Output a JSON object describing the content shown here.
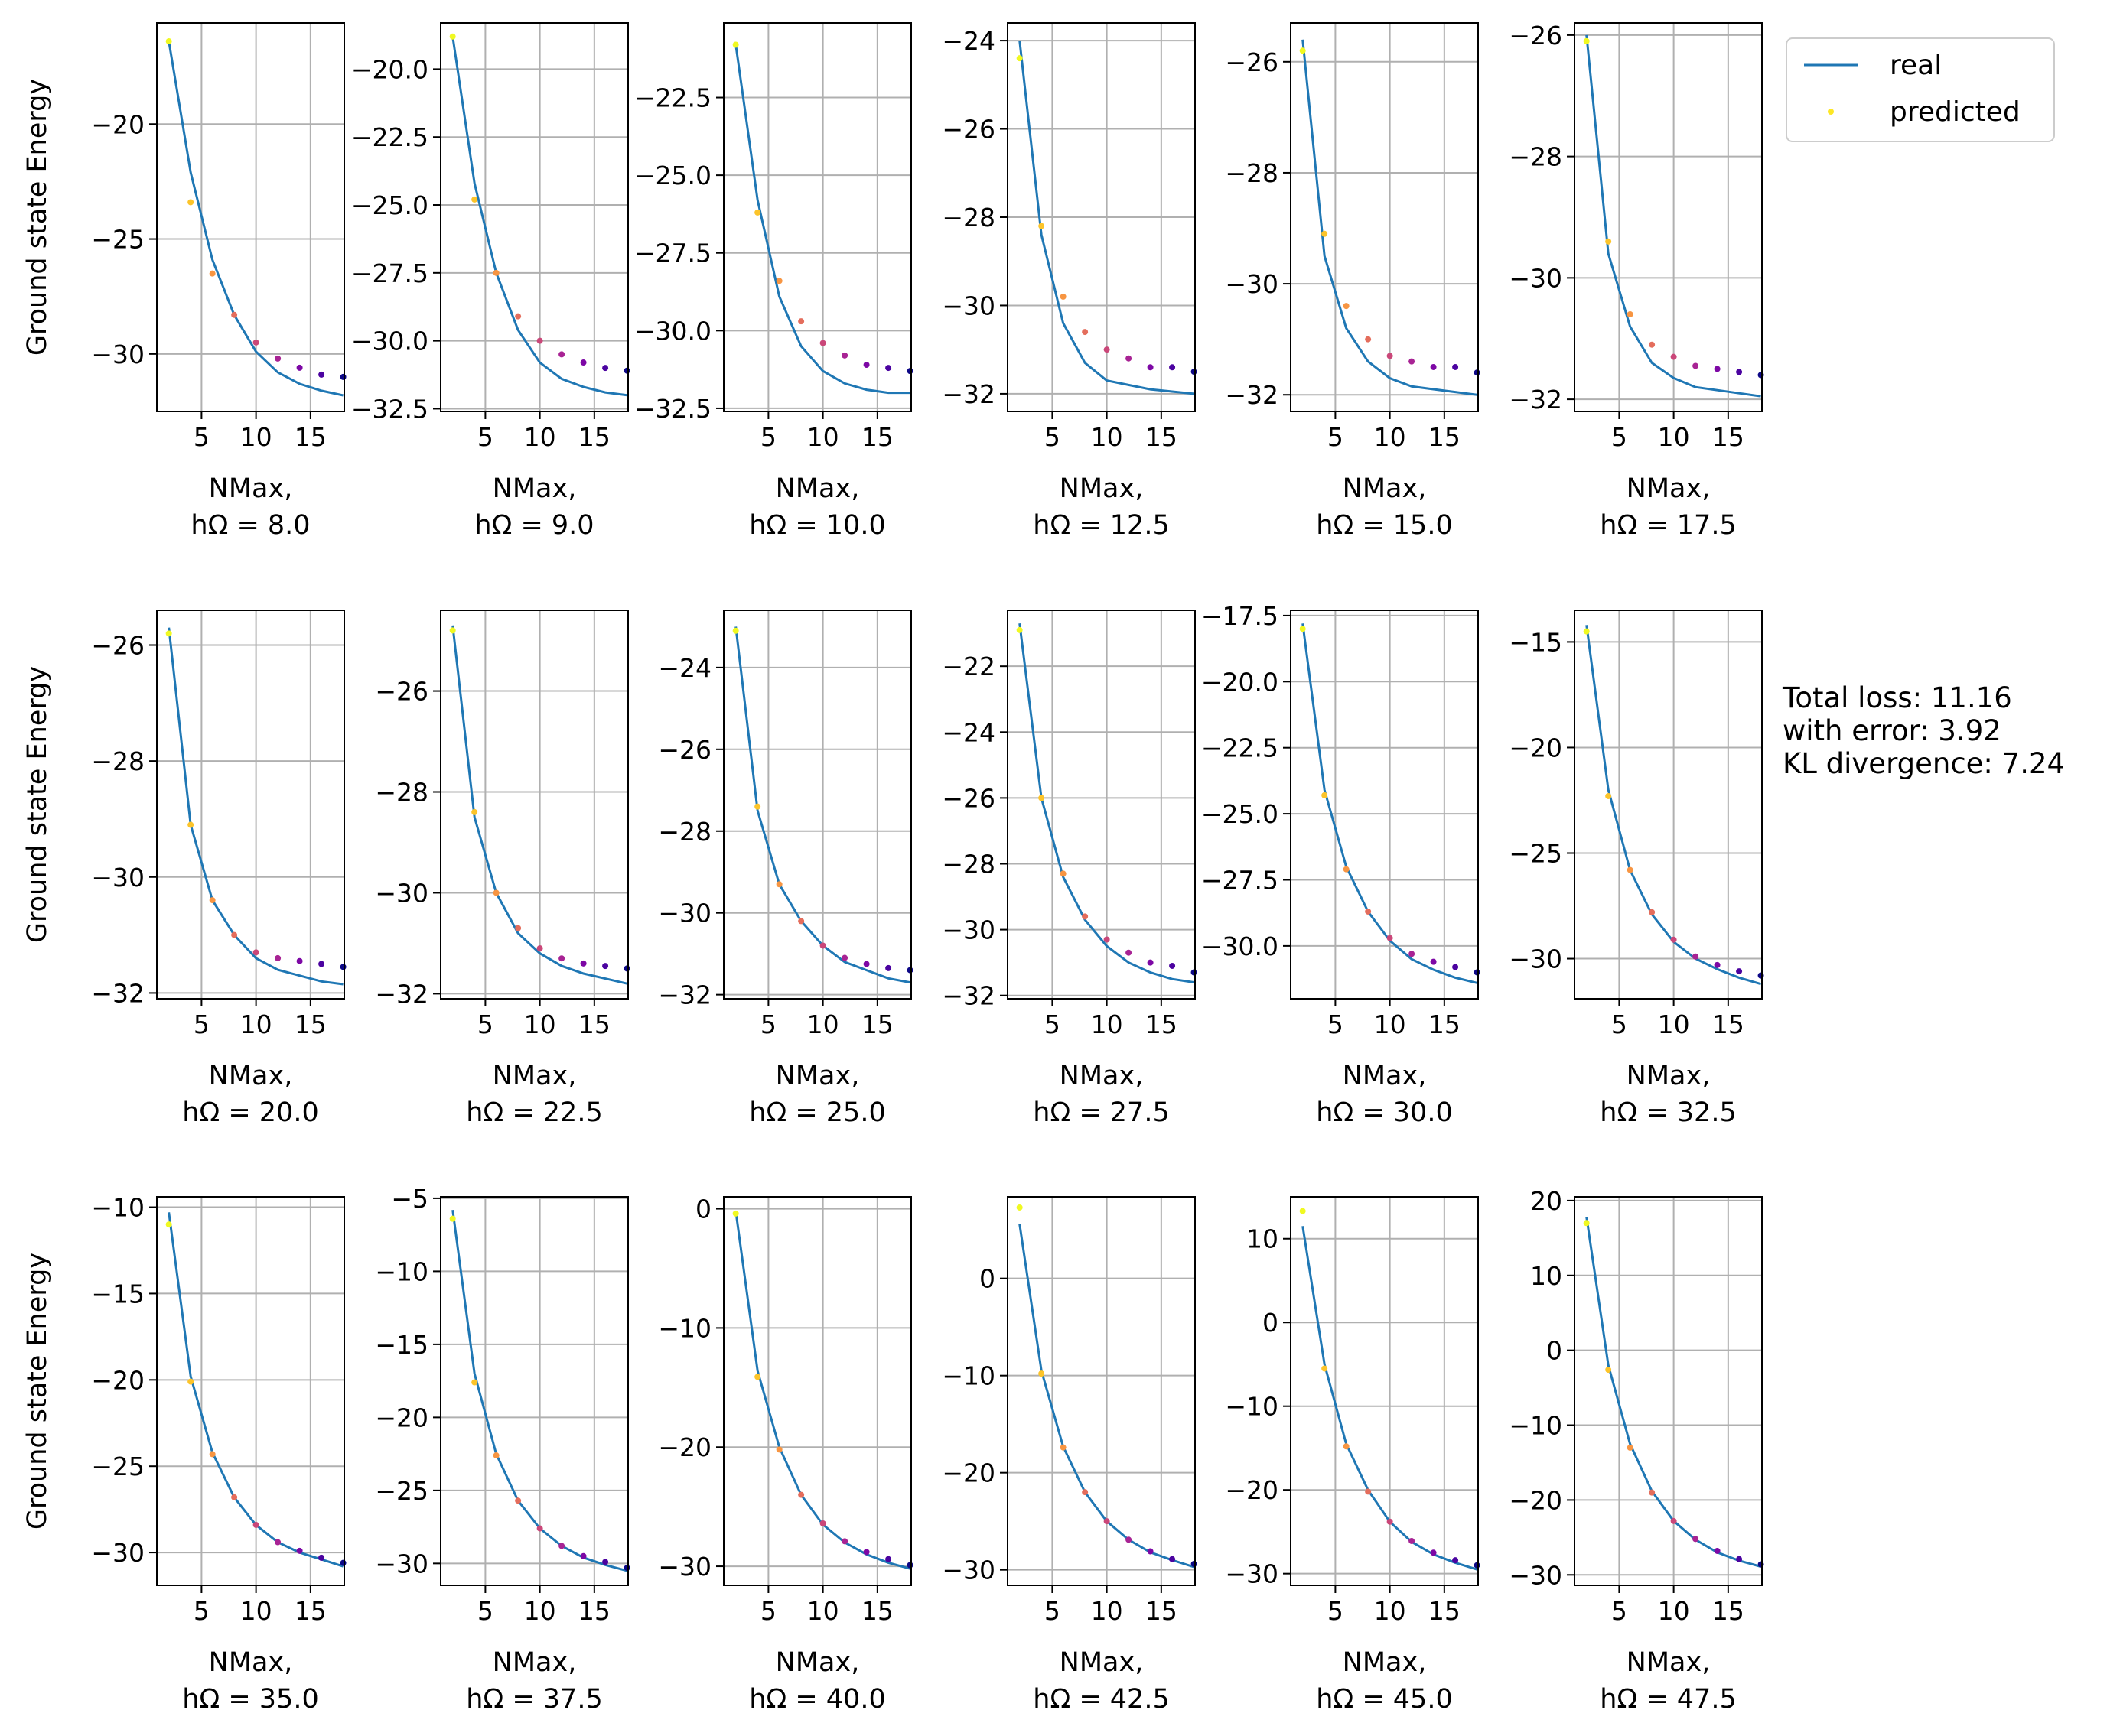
{
  "figure": {
    "ylabel": "Ground state Energy",
    "legend": {
      "real_label": "real",
      "predicted_label": "predicted",
      "placement": "top-right outside"
    },
    "loss_lines": [
      "Total loss: 11.16",
      "with error: 3.92",
      "KL divergence: 7.24"
    ],
    "colors": {
      "real_line": "#1f77b4",
      "grid": "#b0b0b0",
      "predicted_colormap": "plasma",
      "legend_marker": "#fde725"
    }
  },
  "chart_data": [
    {
      "type": "line",
      "panel": 0,
      "xlabel": [
        "NMax,",
        "hΩ = 8.0"
      ],
      "xlim": [
        0.9,
        18.1
      ],
      "ylim": [
        -32.5,
        -15.6
      ],
      "xticks": [
        5,
        10,
        15
      ],
      "yticks": [
        -20,
        -25,
        -30
      ],
      "yticklabels": [
        "−20",
        "−25",
        "−30"
      ],
      "x": [
        2,
        4,
        6,
        8,
        10,
        12,
        14,
        16,
        18
      ],
      "real": [
        -16.4,
        -22.1,
        -25.9,
        -28.3,
        -29.9,
        -30.8,
        -31.3,
        -31.6,
        -31.8
      ],
      "predicted": [
        -16.4,
        -23.4,
        -26.5,
        -28.3,
        -29.5,
        -30.2,
        -30.6,
        -30.9,
        -31.0
      ]
    },
    {
      "type": "line",
      "panel": 1,
      "xlabel": [
        "NMax,",
        "hΩ = 9.0"
      ],
      "xlim": [
        0.9,
        18.1
      ],
      "ylim": [
        -32.6,
        -18.3
      ],
      "xticks": [
        5,
        10,
        15
      ],
      "yticks": [
        -20,
        -22.5,
        -25,
        -27.5,
        -30,
        -32.5
      ],
      "yticklabels": [
        "−20.0",
        "−22.5",
        "−25.0",
        "−27.5",
        "−30.0",
        "−32.5"
      ],
      "x": [
        2,
        4,
        6,
        8,
        10,
        12,
        14,
        16,
        18
      ],
      "real": [
        -18.8,
        -24.2,
        -27.5,
        -29.6,
        -30.8,
        -31.4,
        -31.7,
        -31.9,
        -32.0
      ],
      "predicted": [
        -18.8,
        -24.8,
        -27.5,
        -29.1,
        -30.0,
        -30.5,
        -30.8,
        -31.0,
        -31.1
      ]
    },
    {
      "type": "line",
      "panel": 2,
      "xlabel": [
        "NMax,",
        "hΩ = 10.0"
      ],
      "xlim": [
        0.9,
        18.1
      ],
      "ylim": [
        -32.6,
        -20.1
      ],
      "xticks": [
        5,
        10,
        15
      ],
      "yticks": [
        -22.5,
        -25,
        -27.5,
        -30,
        -32.5
      ],
      "yticklabels": [
        "−22.5",
        "−25.0",
        "−27.5",
        "−30.0",
        "−32.5"
      ],
      "x": [
        2,
        4,
        6,
        8,
        10,
        12,
        14,
        16,
        18
      ],
      "real": [
        -20.8,
        -25.8,
        -28.9,
        -30.5,
        -31.3,
        -31.7,
        -31.9,
        -32.0,
        -32.0
      ],
      "predicted": [
        -20.8,
        -26.2,
        -28.4,
        -29.7,
        -30.4,
        -30.8,
        -31.1,
        -31.2,
        -31.3
      ]
    },
    {
      "type": "line",
      "panel": 3,
      "xlabel": [
        "NMax,",
        "hΩ = 12.5"
      ],
      "xlim": [
        0.9,
        18.1
      ],
      "ylim": [
        -32.4,
        -23.6
      ],
      "xticks": [
        5,
        10,
        15
      ],
      "yticks": [
        -24,
        -26,
        -28,
        -30,
        -32
      ],
      "yticklabels": [
        "−24",
        "−26",
        "−28",
        "−30",
        "−32"
      ],
      "x": [
        2,
        4,
        6,
        8,
        10,
        12,
        14,
        16,
        18
      ],
      "real": [
        -24.0,
        -28.4,
        -30.4,
        -31.3,
        -31.7,
        -31.8,
        -31.9,
        -31.95,
        -32.0
      ],
      "predicted": [
        -24.4,
        -28.2,
        -29.8,
        -30.6,
        -31.0,
        -31.2,
        -31.4,
        -31.4,
        -31.5
      ]
    },
    {
      "type": "line",
      "panel": 4,
      "xlabel": [
        "NMax,",
        "hΩ = 15.0"
      ],
      "xlim": [
        0.9,
        18.1
      ],
      "ylim": [
        -32.3,
        -25.3
      ],
      "xticks": [
        5,
        10,
        15
      ],
      "yticks": [
        -26,
        -28,
        -30,
        -32
      ],
      "yticklabels": [
        "−26",
        "−28",
        "−30",
        "−32"
      ],
      "x": [
        2,
        4,
        6,
        8,
        10,
        12,
        14,
        16,
        18
      ],
      "real": [
        -25.6,
        -29.5,
        -30.8,
        -31.4,
        -31.7,
        -31.85,
        -31.9,
        -31.95,
        -32.0
      ],
      "predicted": [
        -25.8,
        -29.1,
        -30.4,
        -31.0,
        -31.3,
        -31.4,
        -31.5,
        -31.5,
        -31.6
      ]
    },
    {
      "type": "line",
      "panel": 5,
      "xlabel": [
        "NMax,",
        "hΩ = 17.5"
      ],
      "xlim": [
        0.9,
        18.1
      ],
      "ylim": [
        -32.2,
        -25.8
      ],
      "xticks": [
        5,
        10,
        15
      ],
      "yticks": [
        -26,
        -28,
        -30,
        -32
      ],
      "yticklabels": [
        "−26",
        "−28",
        "−30",
        "−32"
      ],
      "x": [
        2,
        4,
        6,
        8,
        10,
        12,
        14,
        16,
        18
      ],
      "real": [
        -26.0,
        -29.6,
        -30.8,
        -31.4,
        -31.65,
        -31.8,
        -31.85,
        -31.9,
        -31.95
      ],
      "predicted": [
        -26.1,
        -29.4,
        -30.6,
        -31.1,
        -31.3,
        -31.45,
        -31.5,
        -31.55,
        -31.6
      ]
    },
    {
      "type": "line",
      "panel": 6,
      "xlabel": [
        "NMax,",
        "hΩ = 20.0"
      ],
      "xlim": [
        0.9,
        18.1
      ],
      "ylim": [
        -32.1,
        -25.4
      ],
      "xticks": [
        5,
        10,
        15
      ],
      "yticks": [
        -26,
        -28,
        -30,
        -32
      ],
      "yticklabels": [
        "−26",
        "−28",
        "−30",
        "−32"
      ],
      "x": [
        2,
        4,
        6,
        8,
        10,
        12,
        14,
        16,
        18
      ],
      "real": [
        -25.7,
        -29.1,
        -30.4,
        -31.0,
        -31.4,
        -31.6,
        -31.7,
        -31.8,
        -31.85
      ],
      "predicted": [
        -25.8,
        -29.1,
        -30.4,
        -31.0,
        -31.3,
        -31.4,
        -31.45,
        -31.5,
        -31.55
      ]
    },
    {
      "type": "line",
      "panel": 7,
      "xlabel": [
        "NMax,",
        "hΩ = 22.5"
      ],
      "xlim": [
        0.9,
        18.1
      ],
      "ylim": [
        -32.1,
        -24.4
      ],
      "xticks": [
        5,
        10,
        15
      ],
      "yticks": [
        -26,
        -28,
        -30,
        -32
      ],
      "yticklabels": [
        "−26",
        "−28",
        "−30",
        "−32"
      ],
      "x": [
        2,
        4,
        6,
        8,
        10,
        12,
        14,
        16,
        18
      ],
      "real": [
        -24.7,
        -28.5,
        -30.0,
        -30.8,
        -31.2,
        -31.45,
        -31.6,
        -31.7,
        -31.8
      ],
      "predicted": [
        -24.8,
        -28.4,
        -30.0,
        -30.7,
        -31.1,
        -31.3,
        -31.4,
        -31.45,
        -31.5
      ]
    },
    {
      "type": "line",
      "panel": 8,
      "xlabel": [
        "NMax,",
        "hΩ = 25.0"
      ],
      "xlim": [
        0.9,
        18.1
      ],
      "ylim": [
        -32.1,
        -22.6
      ],
      "xticks": [
        5,
        10,
        15
      ],
      "yticks": [
        -24,
        -26,
        -28,
        -30,
        -32
      ],
      "yticklabels": [
        "−24",
        "−26",
        "−28",
        "−30",
        "−32"
      ],
      "x": [
        2,
        4,
        6,
        8,
        10,
        12,
        14,
        16,
        18
      ],
      "real": [
        -23.0,
        -27.5,
        -29.3,
        -30.2,
        -30.8,
        -31.2,
        -31.4,
        -31.6,
        -31.7
      ],
      "predicted": [
        -23.1,
        -27.4,
        -29.3,
        -30.2,
        -30.8,
        -31.1,
        -31.25,
        -31.35,
        -31.4
      ]
    },
    {
      "type": "line",
      "panel": 9,
      "xlabel": [
        "NMax,",
        "hΩ = 27.5"
      ],
      "xlim": [
        0.9,
        18.1
      ],
      "ylim": [
        -32.1,
        -20.3
      ],
      "xticks": [
        5,
        10,
        15
      ],
      "yticks": [
        -22,
        -24,
        -26,
        -28,
        -30,
        -32
      ],
      "yticklabels": [
        "−22",
        "−24",
        "−26",
        "−28",
        "−30",
        "−32"
      ],
      "x": [
        2,
        4,
        6,
        8,
        10,
        12,
        14,
        16,
        18
      ],
      "real": [
        -20.7,
        -26.0,
        -28.4,
        -29.7,
        -30.5,
        -31.0,
        -31.3,
        -31.5,
        -31.6
      ],
      "predicted": [
        -20.9,
        -26.0,
        -28.3,
        -29.6,
        -30.3,
        -30.7,
        -31.0,
        -31.1,
        -31.3
      ]
    },
    {
      "type": "line",
      "panel": 10,
      "xlabel": [
        "NMax,",
        "hΩ = 30.0"
      ],
      "xlim": [
        0.9,
        18.1
      ],
      "ylim": [
        -32.0,
        -17.3
      ],
      "xticks": [
        5,
        10,
        15
      ],
      "yticks": [
        -17.5,
        -20,
        -22.5,
        -25,
        -27.5,
        -30
      ],
      "yticklabels": [
        "−17.5",
        "−20.0",
        "−22.5",
        "−25.0",
        "−27.5",
        "−30.0"
      ],
      "x": [
        2,
        4,
        6,
        8,
        10,
        12,
        14,
        16,
        18
      ],
      "real": [
        -17.8,
        -24.1,
        -27.0,
        -28.7,
        -29.8,
        -30.5,
        -30.9,
        -31.2,
        -31.4
      ],
      "predicted": [
        -18.0,
        -24.3,
        -27.1,
        -28.7,
        -29.7,
        -30.3,
        -30.6,
        -30.8,
        -31.0
      ]
    },
    {
      "type": "line",
      "panel": 11,
      "xlabel": [
        "NMax,",
        "hΩ = 32.5"
      ],
      "xlim": [
        0.9,
        18.1
      ],
      "ylim": [
        -31.9,
        -13.5
      ],
      "xticks": [
        5,
        10,
        15
      ],
      "yticks": [
        -15,
        -20,
        -25,
        -30
      ],
      "yticklabels": [
        "−15",
        "−20",
        "−25",
        "−30"
      ],
      "x": [
        2,
        4,
        6,
        8,
        10,
        12,
        14,
        16,
        18
      ],
      "real": [
        -14.2,
        -22.0,
        -25.8,
        -27.9,
        -29.2,
        -30.0,
        -30.5,
        -30.9,
        -31.2
      ],
      "predicted": [
        -14.5,
        -22.3,
        -25.8,
        -27.8,
        -29.1,
        -29.9,
        -30.3,
        -30.6,
        -30.8
      ]
    },
    {
      "type": "line",
      "panel": 12,
      "xlabel": [
        "NMax,",
        "hΩ = 35.0"
      ],
      "xlim": [
        0.9,
        18.1
      ],
      "ylim": [
        -31.9,
        -9.4
      ],
      "xticks": [
        5,
        10,
        15
      ],
      "yticks": [
        -10,
        -15,
        -20,
        -25,
        -30
      ],
      "yticklabels": [
        "−10",
        "−15",
        "−20",
        "−25",
        "−30"
      ],
      "x": [
        2,
        4,
        6,
        8,
        10,
        12,
        14,
        16,
        18
      ],
      "real": [
        -10.3,
        -19.8,
        -24.2,
        -26.8,
        -28.4,
        -29.4,
        -30.0,
        -30.4,
        -30.8
      ],
      "predicted": [
        -11.0,
        -20.1,
        -24.3,
        -26.8,
        -28.4,
        -29.4,
        -29.9,
        -30.3,
        -30.6
      ]
    },
    {
      "type": "line",
      "panel": 13,
      "xlabel": [
        "NMax,",
        "hΩ = 37.5"
      ],
      "xlim": [
        0.9,
        18.1
      ],
      "ylim": [
        -31.5,
        -4.9
      ],
      "xticks": [
        5,
        10,
        15
      ],
      "yticks": [
        -5,
        -10,
        -15,
        -20,
        -25,
        -30
      ],
      "yticklabels": [
        "−5",
        "−10",
        "−15",
        "−20",
        "−25",
        "−30"
      ],
      "x": [
        2,
        4,
        6,
        8,
        10,
        12,
        14,
        16,
        18
      ],
      "real": [
        -5.8,
        -17.0,
        -22.5,
        -25.7,
        -27.6,
        -28.8,
        -29.6,
        -30.1,
        -30.5
      ],
      "predicted": [
        -6.4,
        -17.6,
        -22.6,
        -25.7,
        -27.6,
        -28.8,
        -29.5,
        -29.9,
        -30.3
      ]
    },
    {
      "type": "line",
      "panel": 14,
      "xlabel": [
        "NMax,",
        "hΩ = 40.0"
      ],
      "xlim": [
        0.9,
        18.1
      ],
      "ylim": [
        -31.6,
        1.0
      ],
      "xticks": [
        5,
        10,
        15
      ],
      "yticks": [
        0,
        -10,
        -20,
        -30
      ],
      "yticklabels": [
        "0",
        "−10",
        "−20",
        "−30"
      ],
      "x": [
        2,
        4,
        6,
        8,
        10,
        12,
        14,
        16,
        18
      ],
      "real": [
        -0.2,
        -13.6,
        -20.0,
        -24.0,
        -26.5,
        -28.0,
        -29.0,
        -29.7,
        -30.2
      ],
      "predicted": [
        -0.4,
        -14.1,
        -20.2,
        -24.0,
        -26.4,
        -27.9,
        -28.8,
        -29.4,
        -29.9
      ]
    },
    {
      "type": "line",
      "panel": 15,
      "xlabel": [
        "NMax,",
        "hΩ = 42.5"
      ],
      "xlim": [
        0.9,
        18.1
      ],
      "ylim": [
        -31.6,
        8.4
      ],
      "xticks": [
        5,
        10,
        15
      ],
      "yticks": [
        0,
        -10,
        -20,
        -30
      ],
      "yticklabels": [
        "0",
        "−10",
        "−20",
        "−30"
      ],
      "x": [
        2,
        4,
        6,
        8,
        10,
        12,
        14,
        16,
        18
      ],
      "real": [
        5.6,
        -9.5,
        -17.3,
        -22.0,
        -25.0,
        -26.9,
        -28.2,
        -29.0,
        -29.7
      ],
      "predicted": [
        7.3,
        -9.8,
        -17.4,
        -22.0,
        -25.0,
        -26.9,
        -28.1,
        -28.9,
        -29.4
      ]
    },
    {
      "type": "line",
      "panel": 16,
      "xlabel": [
        "NMax,",
        "hΩ = 45.0"
      ],
      "xlim": [
        0.9,
        18.1
      ],
      "ylim": [
        -31.4,
        15.0
      ],
      "xticks": [
        5,
        10,
        15
      ],
      "yticks": [
        10,
        0,
        -10,
        -20,
        -30
      ],
      "yticklabels": [
        "10",
        "0",
        "−10",
        "−20",
        "−30"
      ],
      "x": [
        2,
        4,
        6,
        8,
        10,
        12,
        14,
        16,
        18
      ],
      "real": [
        11.5,
        -5.0,
        -14.5,
        -20.0,
        -23.8,
        -26.2,
        -27.7,
        -28.7,
        -29.5
      ],
      "predicted": [
        13.3,
        -5.5,
        -14.8,
        -20.2,
        -23.8,
        -26.1,
        -27.5,
        -28.4,
        -29.0
      ]
    },
    {
      "type": "line",
      "panel": 17,
      "xlabel": [
        "NMax,",
        "hΩ = 47.5"
      ],
      "xlim": [
        0.9,
        18.1
      ],
      "ylim": [
        -31.4,
        20.5
      ],
      "xticks": [
        5,
        10,
        15
      ],
      "yticks": [
        20,
        10,
        0,
        -10,
        -20,
        -30
      ],
      "yticklabels": [
        "20",
        "10",
        "0",
        "−10",
        "−20",
        "−30"
      ],
      "x": [
        2,
        4,
        6,
        8,
        10,
        12,
        14,
        16,
        18
      ],
      "real": [
        17.8,
        -2.0,
        -12.5,
        -18.8,
        -22.8,
        -25.3,
        -27.0,
        -28.1,
        -28.9
      ],
      "predicted": [
        17.0,
        -2.6,
        -13.0,
        -19.0,
        -22.8,
        -25.2,
        -26.8,
        -27.9,
        -28.6
      ]
    }
  ]
}
